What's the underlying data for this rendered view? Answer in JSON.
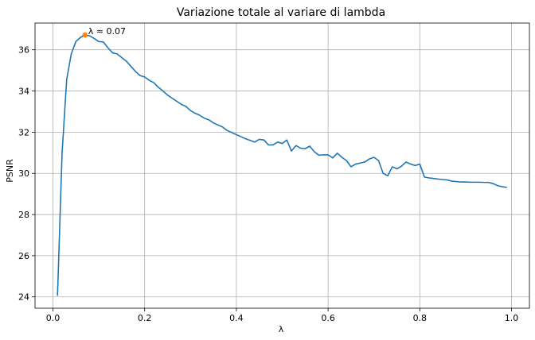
{
  "chart_data": {
    "type": "line",
    "title": "Variazione totale al variare di lambda",
    "xlabel": "λ",
    "ylabel": "PSNR",
    "xlim": [
      -0.039,
      1.039
    ],
    "ylim": [
      23.45,
      37.3
    ],
    "xticks": [
      0.0,
      0.2,
      0.4,
      0.6,
      0.8,
      1.0
    ],
    "xtick_labels": [
      "0.0",
      "0.2",
      "0.4",
      "0.6",
      "0.8",
      "1.0"
    ],
    "yticks": [
      24,
      26,
      28,
      30,
      32,
      34,
      36
    ],
    "ytick_labels": [
      "24",
      "26",
      "28",
      "30",
      "32",
      "34",
      "36"
    ],
    "grid": true,
    "line_color": "#1f77b4",
    "marker_color": "#ff7f0e",
    "series": [
      {
        "x": [
          0.01,
          0.02,
          0.03,
          0.04,
          0.05,
          0.06,
          0.07,
          0.08,
          0.09,
          0.1,
          0.11,
          0.12,
          0.13,
          0.14,
          0.15,
          0.16,
          0.17,
          0.18,
          0.19,
          0.2,
          0.21,
          0.22,
          0.23,
          0.24,
          0.25,
          0.26,
          0.27,
          0.28,
          0.29,
          0.3,
          0.31,
          0.32,
          0.33,
          0.34,
          0.35,
          0.36,
          0.37,
          0.38,
          0.39,
          0.4,
          0.41,
          0.42,
          0.43,
          0.44,
          0.45,
          0.46,
          0.47,
          0.48,
          0.49,
          0.5,
          0.51,
          0.52,
          0.53,
          0.54,
          0.55,
          0.56,
          0.57,
          0.58,
          0.59,
          0.6,
          0.61,
          0.62,
          0.63,
          0.64,
          0.65,
          0.66,
          0.67,
          0.68,
          0.69,
          0.7,
          0.71,
          0.72,
          0.73,
          0.74,
          0.75,
          0.76,
          0.77,
          0.78,
          0.79,
          0.8,
          0.81,
          0.82,
          0.83,
          0.84,
          0.85,
          0.86,
          0.87,
          0.88,
          0.89,
          0.9,
          0.91,
          0.92,
          0.93,
          0.94,
          0.95,
          0.96,
          0.97,
          0.98,
          0.99
        ],
        "y": [
          24.05,
          31.0,
          34.55,
          35.8,
          36.4,
          36.6,
          36.72,
          36.68,
          36.55,
          36.4,
          36.38,
          36.1,
          35.85,
          35.8,
          35.62,
          35.45,
          35.2,
          34.95,
          34.75,
          34.68,
          34.52,
          34.4,
          34.18,
          34.0,
          33.8,
          33.65,
          33.5,
          33.35,
          33.25,
          33.05,
          32.92,
          32.82,
          32.68,
          32.6,
          32.45,
          32.35,
          32.25,
          32.08,
          31.98,
          31.88,
          31.78,
          31.68,
          31.6,
          31.52,
          31.65,
          31.62,
          31.38,
          31.38,
          31.52,
          31.45,
          31.62,
          31.08,
          31.35,
          31.22,
          31.2,
          31.32,
          31.05,
          30.88,
          30.9,
          30.9,
          30.75,
          30.98,
          30.78,
          30.62,
          30.32,
          30.45,
          30.5,
          30.55,
          30.7,
          30.78,
          30.62,
          30.0,
          29.88,
          30.32,
          30.22,
          30.35,
          30.55,
          30.45,
          30.38,
          30.45,
          29.82,
          29.78,
          29.75,
          29.72,
          29.7,
          29.68,
          29.62,
          29.6,
          29.58,
          29.58,
          29.57,
          29.57,
          29.57,
          29.56,
          29.56,
          29.5,
          29.4,
          29.35,
          29.32
        ]
      }
    ],
    "highlight": {
      "x": 0.07,
      "y": 36.72,
      "label": "λ ≈ 0.07"
    }
  }
}
